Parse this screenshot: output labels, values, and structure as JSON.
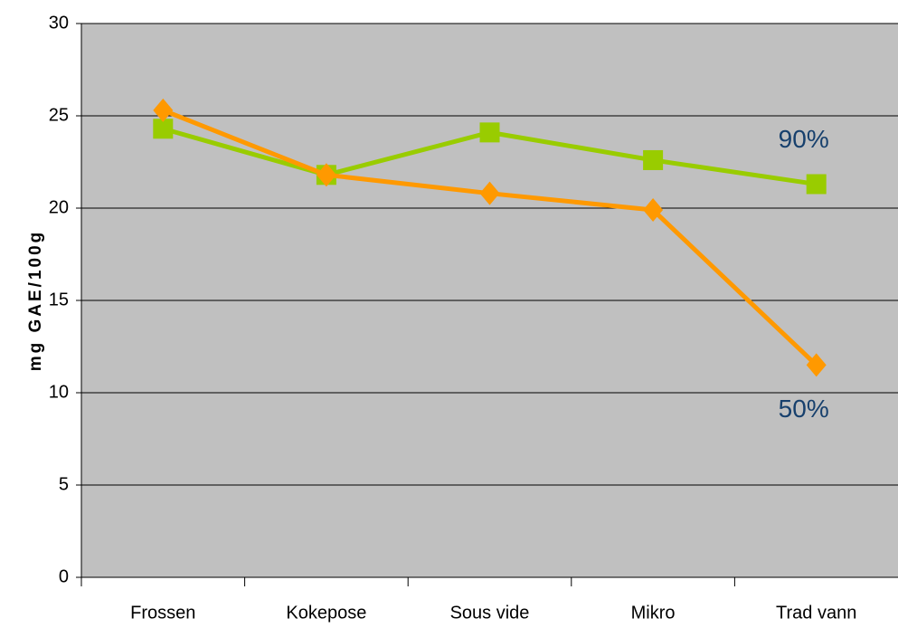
{
  "chart_data": {
    "type": "line",
    "y_label": "mg GAE/100g",
    "categories": [
      "Frossen",
      "Kokepose",
      "Sous vide",
      "Mikro",
      "Trad vann"
    ],
    "series": [
      {
        "color": "#99cc00",
        "marker": "square",
        "label": "90%",
        "values": [
          24.3,
          21.8,
          24.1,
          22.6,
          21.3
        ]
      },
      {
        "color": "#ff9900",
        "marker": "diamond",
        "label": "50%",
        "values": [
          25.3,
          21.8,
          20.8,
          19.9,
          11.5
        ]
      }
    ],
    "ylim": [
      0,
      30
    ],
    "yticks": [
      0,
      5,
      10,
      15,
      20,
      25,
      30
    ],
    "grid": true
  }
}
